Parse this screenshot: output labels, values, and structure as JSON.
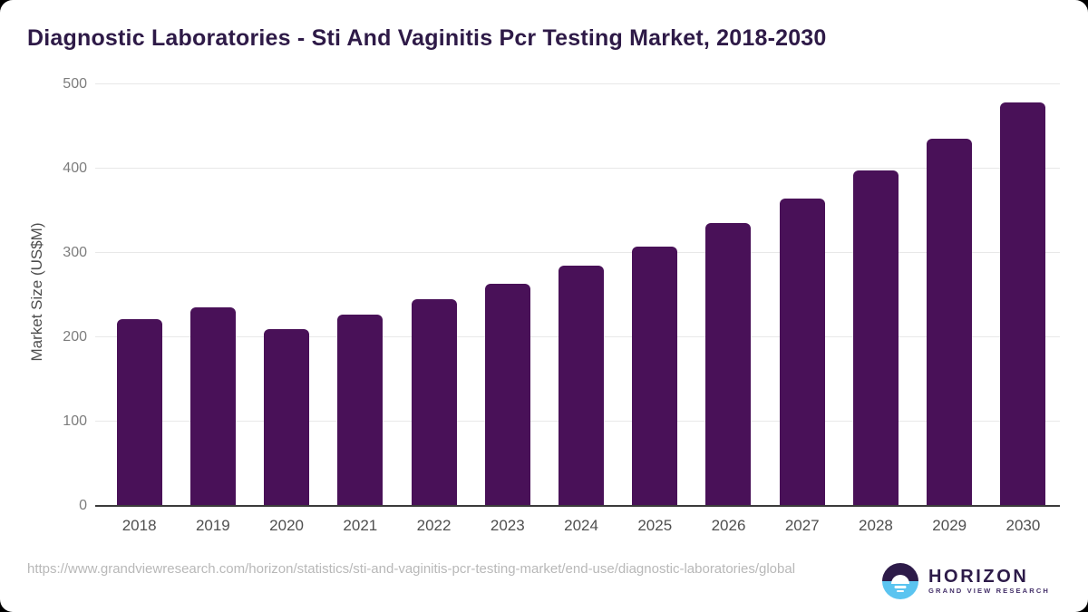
{
  "colors": {
    "card-bg": "#ffffff",
    "title": "#2e1a47",
    "bar": "#491158",
    "grid": "#e8e8e8",
    "axis-line": "#3b3b3b",
    "y-tick": "#7d7d7d",
    "x-tick": "#4f4f4f",
    "axis-title": "#4d4d4d",
    "url": "#b8b8b8",
    "logo-dark": "#2d1b49",
    "logo-blue": "#5bc4f0",
    "logo-sub": "#443069"
  },
  "chart_data": {
    "type": "bar",
    "title": "Diagnostic Laboratories - Sti And Vaginitis Pcr Testing Market, 2018-2030",
    "xlabel": "",
    "ylabel": "Market Size (US$M)",
    "categories": [
      "2018",
      "2019",
      "2020",
      "2021",
      "2022",
      "2023",
      "2024",
      "2025",
      "2026",
      "2027",
      "2028",
      "2029",
      "2030"
    ],
    "values": [
      222,
      235,
      210,
      227,
      245,
      263,
      285,
      308,
      335,
      365,
      398,
      435,
      479
    ],
    "ylim": [
      0,
      500
    ],
    "yticks": [
      0,
      100,
      200,
      300,
      400,
      500
    ],
    "grid": "horizontal",
    "legend": "none",
    "bar_color": "#491158"
  },
  "footer": {
    "source_url": "https://www.grandviewresearch.com/horizon/statistics/sti-and-vaginitis-pcr-testing-market/end-use/diagnostic-laboratories/global",
    "logo": {
      "title": "HORIZON",
      "subtitle": "GRAND VIEW RESEARCH"
    }
  }
}
